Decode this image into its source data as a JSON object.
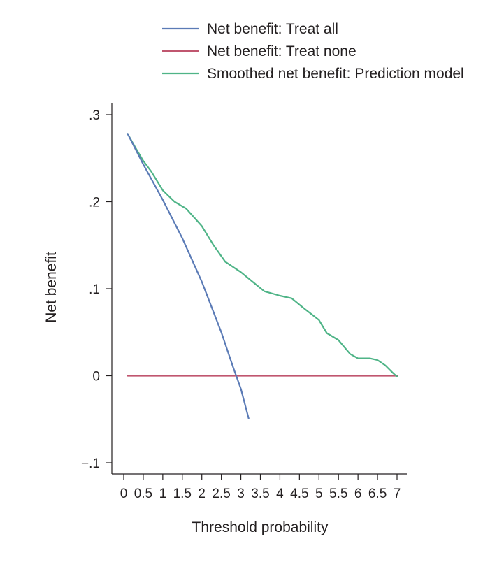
{
  "chart_data": {
    "type": "line",
    "title": "",
    "xlabel": "Threshold probability",
    "ylabel": "Net benefit",
    "xlim": [
      0,
      7
    ],
    "ylim": [
      -0.1,
      0.3
    ],
    "grid": false,
    "legend_position": "top",
    "x_ticks": [
      0,
      0.5,
      1,
      1.5,
      2,
      2.5,
      3,
      3.5,
      4,
      4.5,
      5,
      5.5,
      6,
      6.5,
      7
    ],
    "x_tick_labels": [
      "0",
      "0.5",
      "1",
      "1.5",
      "2",
      "2.5",
      "3",
      "3.5",
      "4",
      "4.5",
      "5",
      "5.5",
      "6",
      "6.5",
      "7"
    ],
    "y_ticks": [
      -0.1,
      0,
      0.1,
      0.2,
      0.3
    ],
    "y_tick_labels": [
      "−.1",
      "0",
      ".1",
      ".2",
      ".3"
    ],
    "series": [
      {
        "name": "Net benefit: Treat all",
        "color": "#5b7bb6",
        "x": [
          0.1,
          0.5,
          1.0,
          1.5,
          2.0,
          2.5,
          2.8,
          3.0,
          3.2
        ],
        "y": [
          0.278,
          0.243,
          0.202,
          0.158,
          0.108,
          0.05,
          0.01,
          -0.015,
          -0.049
        ]
      },
      {
        "name": "Net benefit: Treat none",
        "color": "#c0566f",
        "x": [
          0.1,
          7.0
        ],
        "y": [
          0,
          0
        ]
      },
      {
        "name": "Smoothed net benefit: Prediction model",
        "color": "#4fb487",
        "x": [
          0.1,
          0.3,
          0.5,
          0.7,
          1.0,
          1.3,
          1.6,
          2.0,
          2.3,
          2.6,
          3.0,
          3.3,
          3.6,
          4.0,
          4.3,
          4.6,
          5.0,
          5.2,
          5.5,
          5.8,
          6.0,
          6.3,
          6.5,
          6.7,
          6.9,
          7.0
        ],
        "y": [
          0.278,
          0.262,
          0.247,
          0.235,
          0.213,
          0.2,
          0.192,
          0.172,
          0.15,
          0.131,
          0.119,
          0.108,
          0.097,
          0.092,
          0.089,
          0.078,
          0.064,
          0.049,
          0.041,
          0.025,
          0.02,
          0.02,
          0.018,
          0.012,
          0.003,
          -0.001
        ]
      }
    ]
  }
}
